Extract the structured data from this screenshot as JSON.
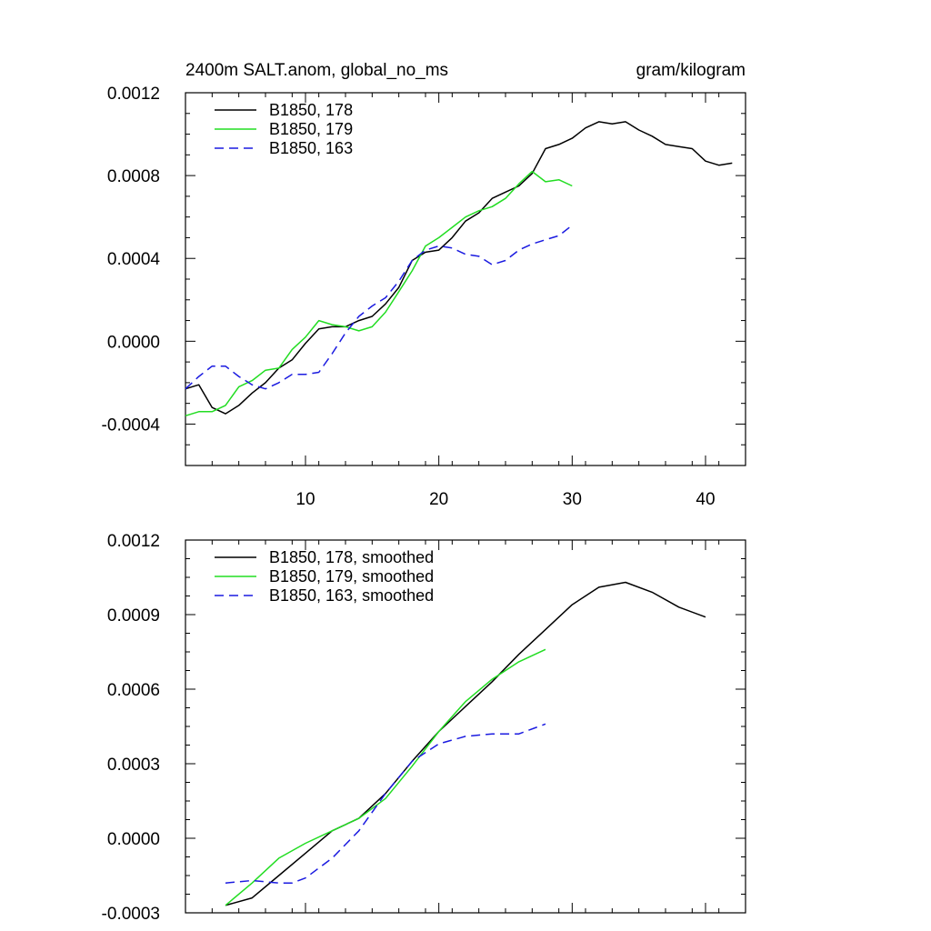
{
  "chart_data": [
    {
      "type": "line",
      "title_left": "2400m SALT.anom, global_no_ms",
      "title_right": "gram/kilogram",
      "xlim": [
        1,
        43
      ],
      "ylim": [
        -0.0006,
        0.0012
      ],
      "xticks": [
        10,
        20,
        30,
        40
      ],
      "xtick_labels": [
        "10",
        "20",
        "30",
        "40"
      ],
      "show_xtick_labels": true,
      "yticks": [
        -0.0004,
        0.0,
        0.0004,
        0.0008,
        0.0012
      ],
      "ytick_labels": [
        "-0.0004",
        "0.0000",
        "0.0004",
        "0.0008",
        "0.0012"
      ],
      "legend_position": "top-left",
      "series": [
        {
          "name": "B1850, 178",
          "color": "#000000",
          "dash": "solid",
          "x": [
            1,
            2,
            3,
            4,
            5,
            6,
            7,
            8,
            9,
            10,
            11,
            12,
            13,
            14,
            15,
            16,
            17,
            18,
            19,
            20,
            21,
            22,
            23,
            24,
            25,
            26,
            27,
            28,
            29,
            30,
            31,
            32,
            33,
            34,
            35,
            36,
            37,
            38,
            39,
            40,
            41,
            42
          ],
          "y": [
            -0.00023,
            -0.00021,
            -0.00032,
            -0.00035,
            -0.00031,
            -0.00025,
            -0.0002,
            -0.00013,
            -9e-05,
            -1e-05,
            6e-05,
            7e-05,
            7e-05,
            0.0001,
            0.00012,
            0.00018,
            0.00026,
            0.00039,
            0.00043,
            0.00044,
            0.0005,
            0.00058,
            0.00062,
            0.00069,
            0.00072,
            0.00075,
            0.00081,
            0.00093,
            0.00095,
            0.00098,
            0.00103,
            0.00106,
            0.00105,
            0.00106,
            0.00102,
            0.00099,
            0.00095,
            0.00094,
            0.00093,
            0.00087,
            0.00085,
            0.00086
          ]
        },
        {
          "name": "B1850, 179",
          "color": "#22dd22",
          "dash": "solid",
          "x": [
            1,
            2,
            3,
            4,
            5,
            6,
            7,
            8,
            9,
            10,
            11,
            12,
            13,
            14,
            15,
            16,
            17,
            18,
            19,
            20,
            21,
            22,
            23,
            24,
            25,
            26,
            27,
            28,
            29,
            30
          ],
          "y": [
            -0.00036,
            -0.00034,
            -0.00034,
            -0.00031,
            -0.00022,
            -0.00019,
            -0.00014,
            -0.00013,
            -4e-05,
            2e-05,
            0.0001,
            8e-05,
            7e-05,
            5e-05,
            7e-05,
            0.00014,
            0.00024,
            0.00034,
            0.00046,
            0.0005,
            0.00055,
            0.0006,
            0.00063,
            0.00065,
            0.00069,
            0.00076,
            0.00082,
            0.00077,
            0.00078,
            0.00075
          ]
        },
        {
          "name": "B1850, 163",
          "color": "#1a1ae0",
          "dash": "dashed",
          "x": [
            1,
            2,
            3,
            4,
            5,
            6,
            7,
            8,
            9,
            10,
            11,
            12,
            13,
            14,
            15,
            16,
            17,
            18,
            19,
            20,
            21,
            22,
            23,
            24,
            25,
            26,
            27,
            28,
            29,
            30
          ],
          "y": [
            -0.00023,
            -0.00017,
            -0.00012,
            -0.00012,
            -0.00017,
            -0.00021,
            -0.00023,
            -0.0002,
            -0.00016,
            -0.00016,
            -0.00015,
            -6e-05,
            4e-05,
            0.00012,
            0.00017,
            0.00021,
            0.00029,
            0.00039,
            0.00044,
            0.00046,
            0.00045,
            0.00042,
            0.00041,
            0.00037,
            0.00039,
            0.00044,
            0.00047,
            0.00049,
            0.00051,
            0.00056
          ]
        }
      ]
    },
    {
      "type": "line",
      "title_left": "",
      "title_right": "",
      "xlim": [
        1,
        43
      ],
      "ylim": [
        -0.0003,
        0.0012
      ],
      "xticks": [
        10,
        20,
        30,
        40
      ],
      "xtick_labels": [
        "",
        "",
        "",
        ""
      ],
      "show_xtick_labels": false,
      "yticks": [
        -0.0003,
        0.0,
        0.0003,
        0.0006,
        0.0009,
        0.0012
      ],
      "ytick_labels": [
        "-0.0003",
        "0.0000",
        "0.0003",
        "0.0006",
        "0.0009",
        "0.0012"
      ],
      "legend_position": "top-left",
      "series": [
        {
          "name": "B1850, 178, smoothed",
          "color": "#000000",
          "dash": "solid",
          "x": [
            4,
            6,
            8,
            10,
            12,
            14,
            16,
            18,
            20,
            22,
            24,
            26,
            28,
            30,
            32,
            34,
            36,
            38,
            40
          ],
          "y": [
            -0.00027,
            -0.00024,
            -0.00015,
            -6e-05,
            3e-05,
            8e-05,
            0.00018,
            0.00031,
            0.00043,
            0.00053,
            0.00063,
            0.00074,
            0.00084,
            0.00094,
            0.00101,
            0.00103,
            0.00099,
            0.00093,
            0.00089
          ]
        },
        {
          "name": "B1850, 179, smoothed",
          "color": "#22dd22",
          "dash": "solid",
          "x": [
            4,
            6,
            8,
            10,
            12,
            14,
            16,
            18,
            20,
            22,
            24,
            26,
            28
          ],
          "y": [
            -0.00027,
            -0.00018,
            -8e-05,
            -2e-05,
            3e-05,
            8e-05,
            0.00016,
            0.00029,
            0.00043,
            0.00055,
            0.00064,
            0.00071,
            0.00076
          ]
        },
        {
          "name": "B1850, 163, smoothed",
          "color": "#1a1ae0",
          "dash": "dashed",
          "x": [
            4,
            6,
            8,
            9,
            10,
            12,
            14,
            16,
            18,
            20,
            22,
            24,
            26,
            28
          ],
          "y": [
            -0.00018,
            -0.00017,
            -0.00018,
            -0.00018,
            -0.00016,
            -8e-05,
            3e-05,
            0.00018,
            0.00031,
            0.00038,
            0.00041,
            0.00042,
            0.00042,
            0.00046
          ]
        }
      ]
    }
  ]
}
